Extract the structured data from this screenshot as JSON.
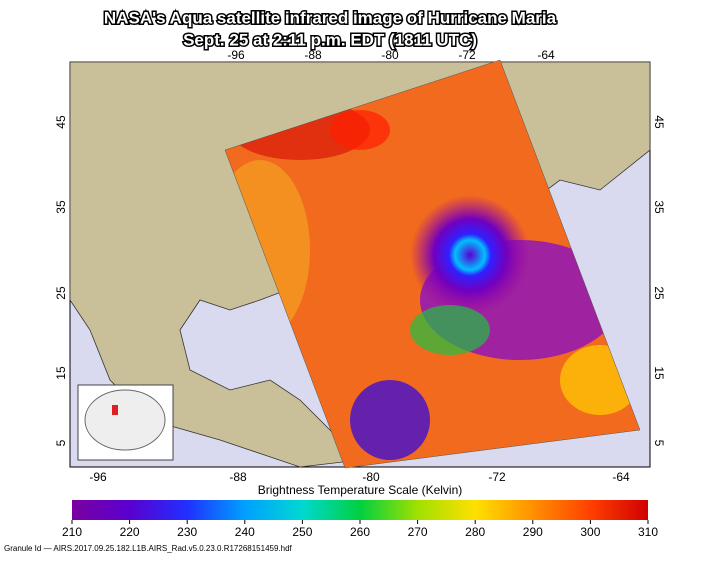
{
  "header": {
    "title_lines": [
      "NASA's Aqua satellite infrared image of Hurricane Maria",
      "Sept. 25 at 2:11 p.m. EDT (1811 UTC)"
    ]
  },
  "map": {
    "top_longitudes": [
      -96,
      -88,
      -80,
      -72,
      -64
    ],
    "bottom_longitudes": [
      -96,
      -88,
      -80,
      -72,
      -64
    ],
    "left_latitudes": [
      45,
      35,
      25,
      15,
      5
    ],
    "right_latitudes": [
      45,
      35,
      25,
      15,
      5
    ]
  },
  "colorbar": {
    "label": "Brightness Temperature Scale (Kelvin)",
    "ticks": [
      210,
      220,
      230,
      240,
      250,
      260,
      270,
      280,
      290,
      300,
      310
    ]
  },
  "footer": {
    "granule": "Granule Id — AIRS.2017.09.25.182.L1B.AIRS_Rad.v5.0.23.0.R17268151459.hdf"
  }
}
